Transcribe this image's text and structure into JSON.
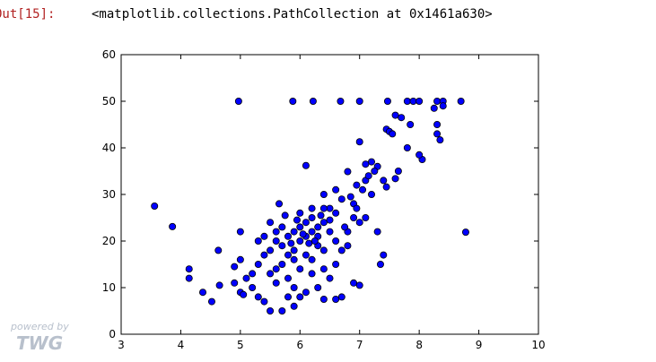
{
  "prompt": "Out[15]:",
  "output_text": "<matplotlib.collections.PathCollection at 0x1461a630>",
  "watermark": {
    "line1": "powered by",
    "line2": "TWG"
  },
  "chart_data": {
    "type": "scatter",
    "color": "#0000ff",
    "x": [
      3.56,
      3.86,
      4.14,
      4.14,
      4.37,
      4.52,
      4.63,
      4.65,
      4.9,
      4.97,
      5.0,
      5.0,
      5.88,
      6.22,
      6.68,
      7.0,
      7.47,
      7.8,
      7.9,
      8.0,
      8.3,
      8.4,
      8.7,
      8.78,
      8.25,
      8.4,
      8.05,
      8.0,
      7.85,
      7.7,
      7.6,
      7.45,
      7.5,
      7.55,
      7.8,
      7.65,
      8.3,
      8.3,
      8.35,
      7.0,
      6.95,
      7.1,
      7.2,
      7.3,
      7.4,
      7.45,
      7.2,
      6.8,
      6.5,
      6.1,
      6.4,
      6.6,
      6.7,
      6.9,
      7.0,
      7.1,
      7.3,
      7.4,
      7.35,
      6.8,
      6.9,
      7.0,
      6.7,
      6.6,
      6.4,
      5.9,
      6.0,
      5.7,
      5.5,
      5.4,
      5.3,
      5.2,
      5.1,
      5.2,
      5.3,
      5.4,
      5.5,
      5.6,
      5.7,
      5.8,
      5.9,
      6.0,
      6.1,
      6.2,
      6.3,
      6.4,
      6.5,
      6.0,
      6.1,
      6.2,
      6.3,
      5.9,
      5.8,
      5.7,
      5.6,
      5.5,
      5.6,
      5.8,
      6.0,
      6.2,
      6.4,
      6.6,
      6.5,
      6.3,
      6.1,
      5.9,
      6.2,
      6.4,
      6.6,
      6.5,
      6.3,
      6.1,
      5.9,
      5.8,
      6.7,
      6.8,
      6.9,
      6.6,
      6.4,
      6.2,
      6.0,
      5.7,
      5.6,
      5.5,
      5.4,
      5.3,
      5.0,
      4.9,
      5.05,
      6.75,
      6.95,
      7.05,
      7.15,
      6.25,
      6.15,
      6.05,
      5.95,
      6.35,
      5.85,
      5.75,
      5.65,
      7.25,
      7.1,
      7.6,
      6.85
    ],
    "values": [
      27.5,
      23.1,
      14,
      12,
      9,
      7,
      18,
      10.5,
      14.5,
      50,
      22,
      16,
      50,
      50,
      50,
      50,
      50,
      50,
      50,
      50,
      50,
      50,
      50,
      21.9,
      48.5,
      49,
      37.5,
      38.5,
      45,
      46.5,
      47,
      44,
      43.5,
      43,
      40,
      35,
      43,
      45,
      41.7,
      41.3,
      32,
      33,
      37,
      36,
      33,
      31.6,
      30,
      34.9,
      27,
      36.2,
      30,
      31,
      29,
      28,
      24,
      25,
      22,
      17,
      15,
      19,
      11,
      10.5,
      8,
      7.5,
      7.5,
      6,
      8,
      5,
      5,
      7,
      8,
      10,
      12,
      13,
      15,
      17,
      18,
      20,
      19,
      21,
      22,
      20,
      21,
      22,
      23,
      24,
      24.5,
      23,
      24,
      25,
      21,
      18,
      17,
      15,
      14,
      13,
      11,
      12,
      14,
      16,
      18,
      20,
      22,
      19,
      17,
      16,
      13,
      14,
      15,
      12,
      10,
      9,
      10,
      8,
      18,
      22,
      25,
      26,
      27,
      27,
      26,
      23,
      22,
      24,
      21,
      20,
      9,
      11,
      8.5,
      23,
      27,
      31,
      34,
      20,
      19.5,
      21.5,
      24.5,
      25.5,
      19.5,
      25.5,
      28,
      35,
      36.5,
      33.4,
      29.5
    ],
    "xlim": [
      3,
      10
    ],
    "ylim": [
      0,
      60
    ],
    "xticks": [
      3,
      4,
      5,
      6,
      7,
      8,
      9,
      10
    ],
    "yticks": [
      0,
      10,
      20,
      30,
      40,
      50,
      60
    ]
  }
}
